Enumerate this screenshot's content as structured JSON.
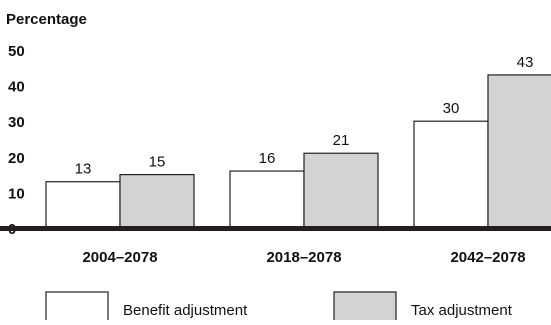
{
  "chart_data": {
    "type": "bar",
    "ylabel": "Percentage",
    "ylim": [
      0,
      50
    ],
    "y_ticks": [
      "0",
      "10",
      "20",
      "30",
      "40",
      "50"
    ],
    "categories": [
      "2004–2078",
      "2018–2078",
      "2042–2078"
    ],
    "series": [
      {
        "name": "Benefit adjustment",
        "values": [
          13,
          16,
          30
        ],
        "color": "#ffffff"
      },
      {
        "name": "Tax adjustment",
        "values": [
          15,
          21,
          43
        ],
        "color": "#d3d3d3"
      }
    ],
    "grid": false,
    "legend_position": "bottom"
  }
}
